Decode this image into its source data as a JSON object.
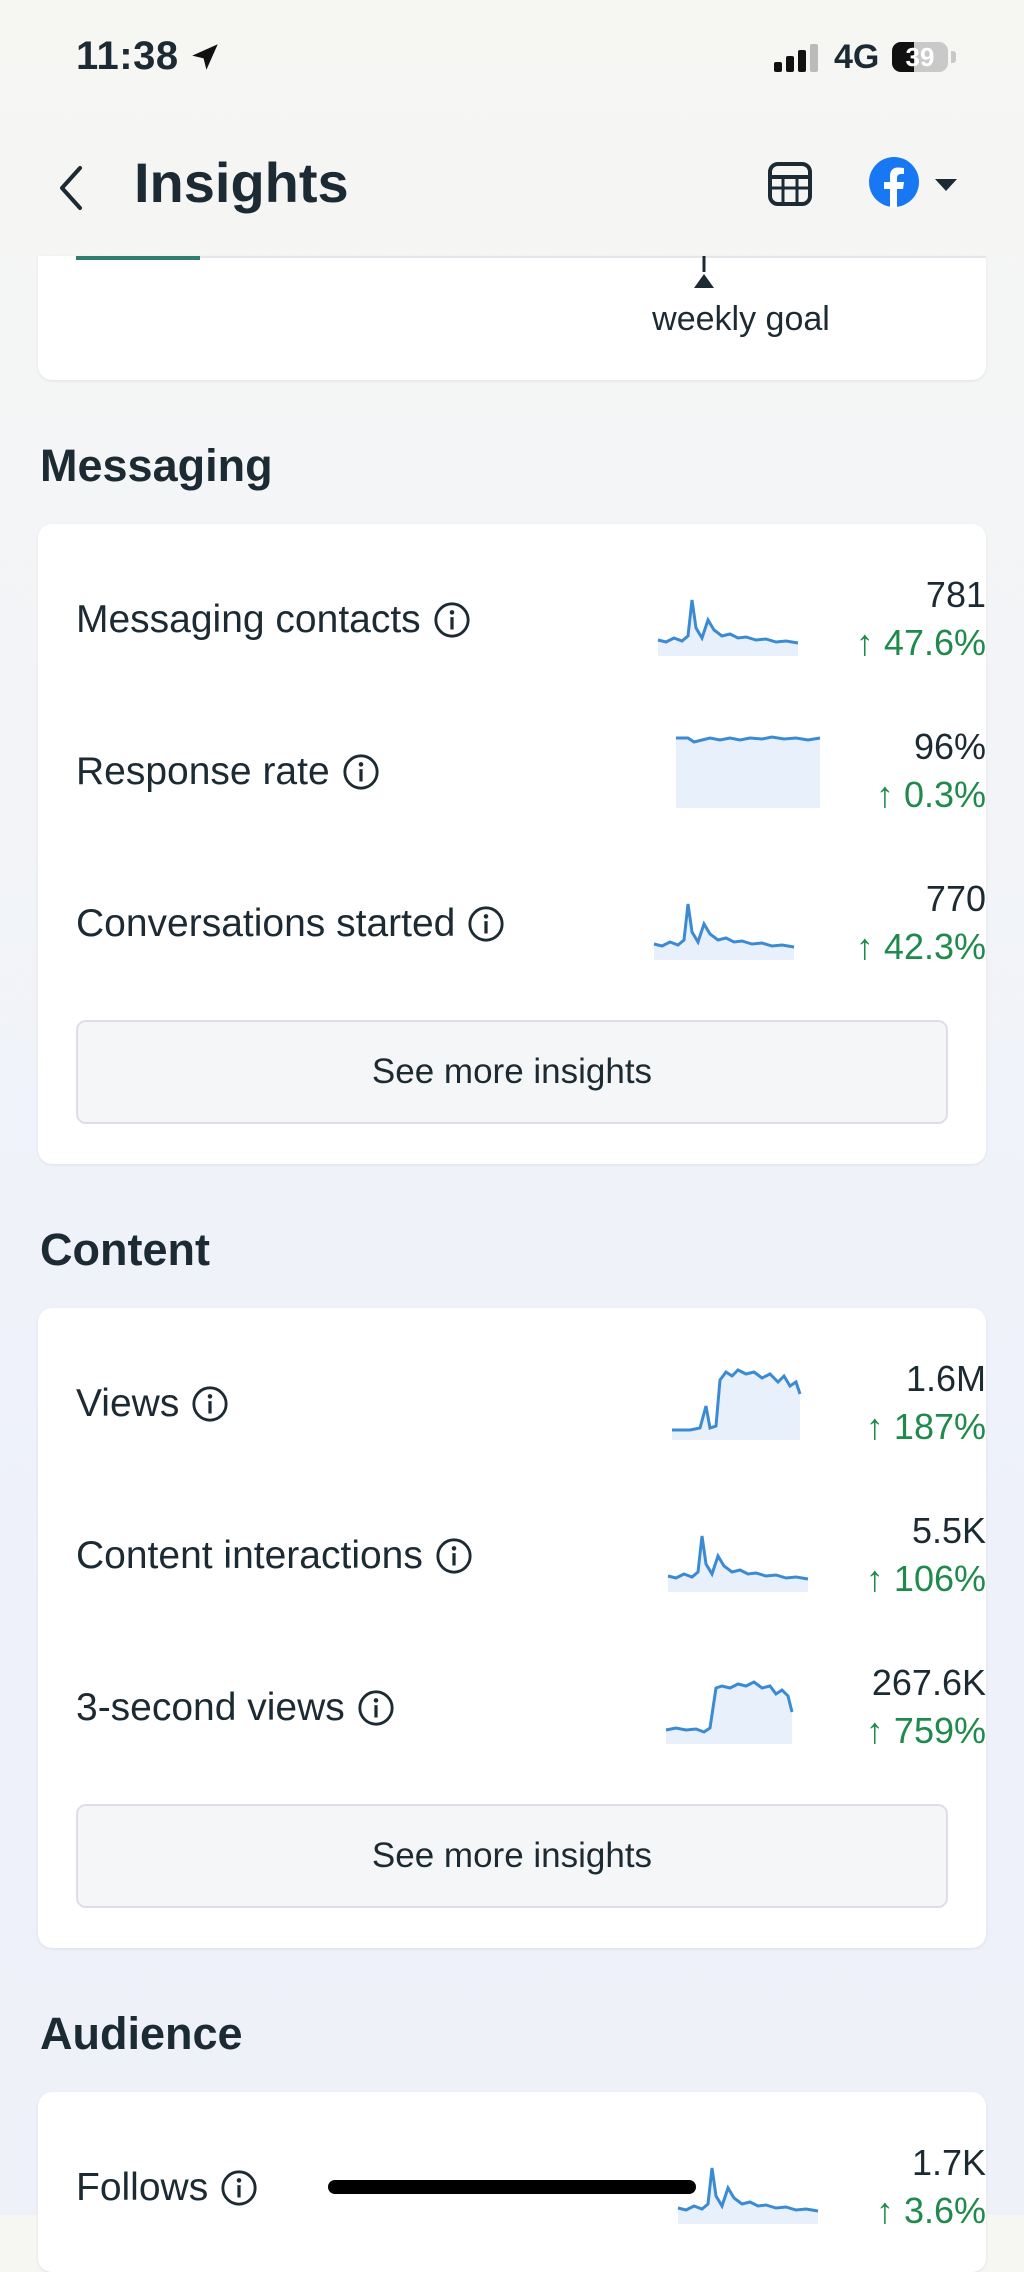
{
  "status_bar": {
    "time": "11:38",
    "network": "4G",
    "battery": "39",
    "battery_fraction": 0.39
  },
  "header": {
    "title": "Insights"
  },
  "goal": {
    "label": "weekly goal"
  },
  "messaging": {
    "title": "Messaging",
    "metrics": [
      {
        "label": "Messaging contacts",
        "value": "781",
        "change": "↑ 47.6%"
      },
      {
        "label": "Response rate",
        "value": "96%",
        "change": "↑ 0.3%"
      },
      {
        "label": "Conversations started",
        "value": "770",
        "change": "↑ 42.3%"
      }
    ],
    "button": "See more insights"
  },
  "content": {
    "title": "Content",
    "metrics": [
      {
        "label": "Views",
        "value": "1.6M",
        "change": "↑ 187%"
      },
      {
        "label": "Content interactions",
        "value": "5.5K",
        "change": "↑ 106%"
      },
      {
        "label": "3-second views",
        "value": "267.6K",
        "change": "↑ 759%"
      }
    ],
    "button": "See more insights"
  },
  "audience": {
    "title": "Audience",
    "metrics": [
      {
        "label": "Follows",
        "value": "1.7K",
        "change": "↑ 3.6%"
      }
    ]
  },
  "colors": {
    "accent": "#1877f2",
    "positive": "#1f8a4c",
    "sparkline": "#3b8ad4",
    "goal_bar": "#2e7d6e"
  }
}
